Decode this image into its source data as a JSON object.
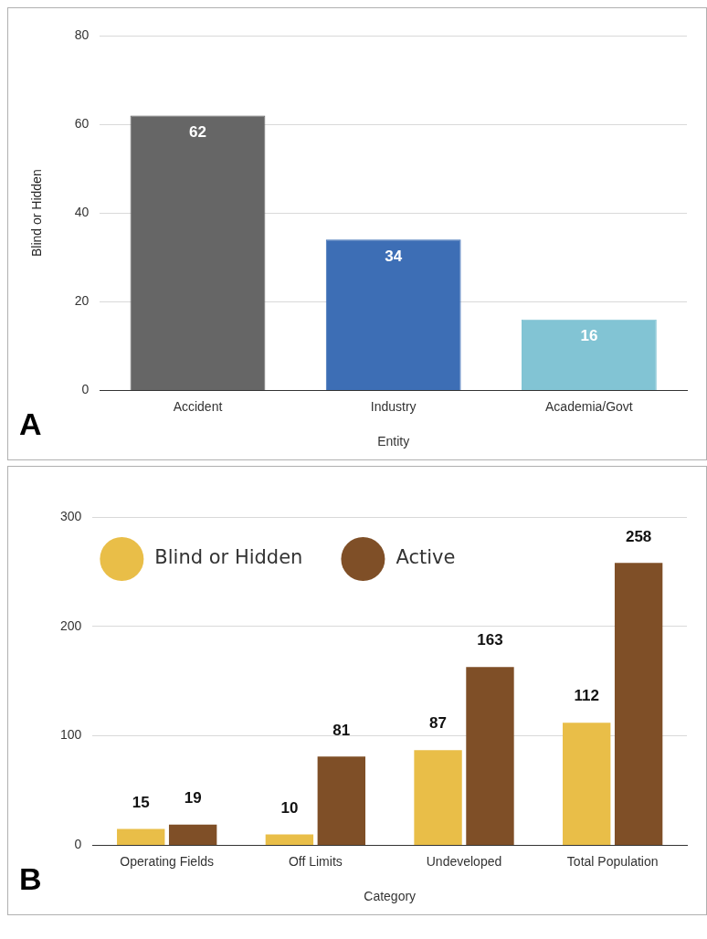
{
  "chart_data": [
    {
      "type": "bar",
      "categories": [
        "Accident",
        "Industry",
        "Academia/Govt"
      ],
      "values": [
        62,
        34,
        16
      ],
      "colors": [
        "#666666",
        "#3d6eb5",
        "#82c4d4"
      ],
      "xlabel": "Entity",
      "ylabel": "Blind or Hidden",
      "ylim": [
        0,
        80
      ],
      "yticks": [
        0,
        20,
        40,
        60,
        80
      ],
      "grid": "y",
      "data_labels": true,
      "legend": false,
      "annotations": [
        "A"
      ]
    },
    {
      "type": "bar",
      "categories": [
        "Operating Fields",
        "Off Limits",
        "Undeveloped",
        "Total Population"
      ],
      "series": [
        {
          "name": "Blind or Hidden",
          "color": "#e9be48",
          "values": [
            15,
            10,
            87,
            112
          ]
        },
        {
          "name": "Active",
          "color": "#7f4f27",
          "values": [
            19,
            81,
            163,
            258
          ]
        }
      ],
      "xlabel": "Category",
      "ylim": [
        0,
        300
      ],
      "yticks": [
        0,
        100,
        200,
        300
      ],
      "grid": "y",
      "data_labels": true,
      "legend": "top left",
      "annotations": [
        "B"
      ]
    }
  ]
}
